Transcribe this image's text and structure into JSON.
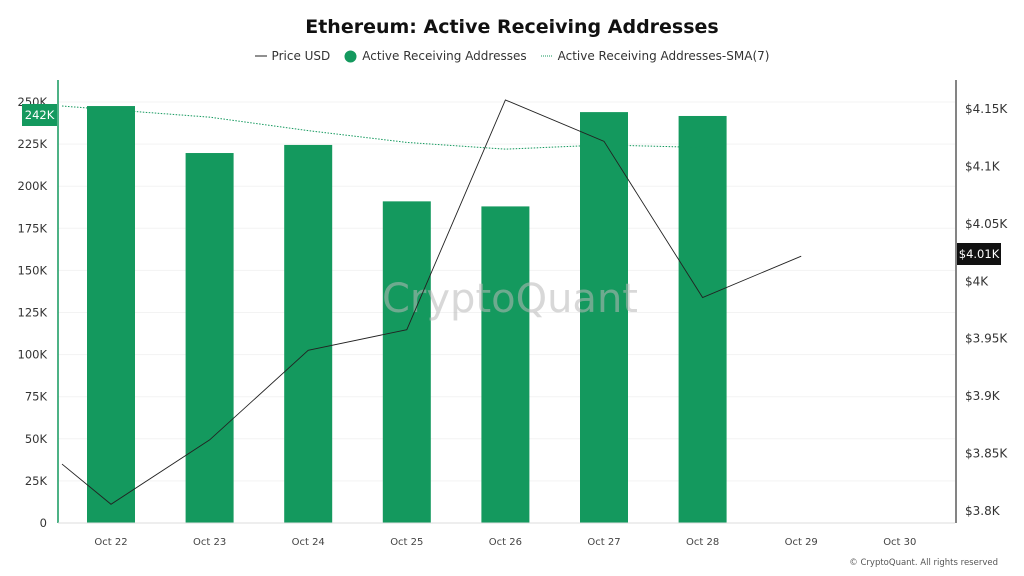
{
  "chart_data": {
    "type": "bar",
    "title": "Ethereum: Active Receiving Addresses",
    "categories": [
      "Oct 22",
      "Oct 23",
      "Oct 24",
      "Oct 25",
      "Oct 26",
      "Oct 27",
      "Oct 28",
      "Oct 29",
      "Oct 30"
    ],
    "series": [
      {
        "name": "Active Receiving Addresses",
        "type": "bar",
        "axis": "left",
        "color": "#14995e",
        "values": [
          247600,
          219700,
          224500,
          191000,
          188000,
          244000,
          241700,
          null,
          null
        ]
      },
      {
        "name": "Active Receiving Addresses-SMA(7)",
        "type": "line",
        "style": "dotted",
        "axis": "left",
        "color": "#14995e",
        "values": [
          247600,
          241000,
          233000,
          226000,
          222000,
          224500,
          223000,
          null,
          null
        ]
      },
      {
        "name": "Price USD",
        "type": "line",
        "axis": "right",
        "color": "#222222",
        "start_value": 3840,
        "values": [
          3805,
          3861,
          3939,
          3957,
          4157,
          4121,
          3985,
          4021,
          null
        ]
      }
    ],
    "left_axis": {
      "ticks": [
        "0",
        "25K",
        "50K",
        "75K",
        "100K",
        "125K",
        "150K",
        "175K",
        "200K",
        "225K",
        "250K"
      ],
      "ylim": [
        0,
        250000
      ]
    },
    "right_axis": {
      "ticks": [
        "$3.8K",
        "$3.85K",
        "$3.9K",
        "$3.95K",
        "$4K",
        "$4.05K",
        "$4.1K",
        "$4.15K"
      ],
      "ylim": [
        3800,
        4150
      ]
    },
    "left_marker_label": "242K",
    "right_marker_label": "$4.01K",
    "legend_position": "top",
    "grid": true
  },
  "watermark": "CryptoQuant",
  "credit": "© CryptoQuant. All rights reserved"
}
